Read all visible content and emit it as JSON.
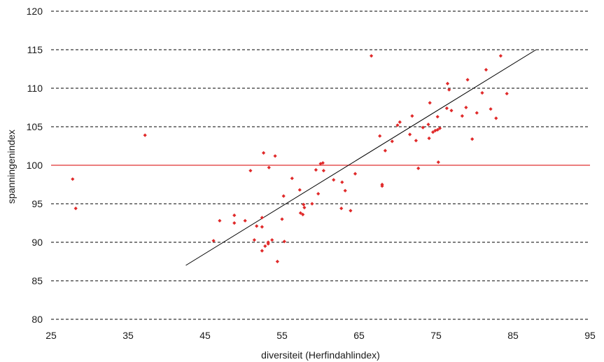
{
  "chart_data": {
    "type": "scatter",
    "title": "",
    "xlabel": "diversiteit (Herfindahlindex)",
    "ylabel": "spanningenindex",
    "xlim": [
      25,
      95
    ],
    "ylim": [
      80,
      120
    ],
    "x_ticks": [
      25,
      35,
      45,
      55,
      65,
      75,
      85,
      95
    ],
    "y_ticks": [
      80,
      85,
      90,
      95,
      100,
      105,
      110,
      115,
      120
    ],
    "grid": "horizontal-dashed",
    "legend": "none",
    "reference_line": {
      "y": 100,
      "color": "#e03030"
    },
    "trend_line": {
      "x": [
        42.5,
        88
      ],
      "y": [
        87,
        115
      ],
      "color": "#000000"
    },
    "marker_color": "#e02a2a",
    "points": [
      [
        27.8,
        98.2
      ],
      [
        28.2,
        94.4
      ],
      [
        37.2,
        103.9
      ],
      [
        46.1,
        90.2
      ],
      [
        46.9,
        92.8
      ],
      [
        48.8,
        93.5
      ],
      [
        48.8,
        92.5
      ],
      [
        50.2,
        92.8
      ],
      [
        50.9,
        99.3
      ],
      [
        51.4,
        90.3
      ],
      [
        51.7,
        92.1
      ],
      [
        52.4,
        93.2
      ],
      [
        52.6,
        101.6
      ],
      [
        52.4,
        92.0
      ],
      [
        52.4,
        88.9
      ],
      [
        52.8,
        89.5
      ],
      [
        53.2,
        90.0
      ],
      [
        53.2,
        89.8
      ],
      [
        53.3,
        99.7
      ],
      [
        53.7,
        90.3
      ],
      [
        54.1,
        101.2
      ],
      [
        54.4,
        87.5
      ],
      [
        55.0,
        93.0
      ],
      [
        55.2,
        96.0
      ],
      [
        55.3,
        90.1
      ],
      [
        56.3,
        98.3
      ],
      [
        57.3,
        96.8
      ],
      [
        57.4,
        93.8
      ],
      [
        57.7,
        93.6
      ],
      [
        57.8,
        94.9
      ],
      [
        57.9,
        94.5
      ],
      [
        58.9,
        95.0
      ],
      [
        59.4,
        99.4
      ],
      [
        59.7,
        96.3
      ],
      [
        60.0,
        100.2
      ],
      [
        60.3,
        100.3
      ],
      [
        60.4,
        99.3
      ],
      [
        61.7,
        98.1
      ],
      [
        62.7,
        94.4
      ],
      [
        62.8,
        97.8
      ],
      [
        63.2,
        96.7
      ],
      [
        63.9,
        94.1
      ],
      [
        64.5,
        98.9
      ],
      [
        66.6,
        114.2
      ],
      [
        67.7,
        103.8
      ],
      [
        68.0,
        97.5
      ],
      [
        68.0,
        97.3
      ],
      [
        68.4,
        101.9
      ],
      [
        69.3,
        103.1
      ],
      [
        70.0,
        105.2
      ],
      [
        70.3,
        105.6
      ],
      [
        71.6,
        104.0
      ],
      [
        71.9,
        106.4
      ],
      [
        72.4,
        103.2
      ],
      [
        72.7,
        99.6
      ],
      [
        73.3,
        104.9
      ],
      [
        74.0,
        105.3
      ],
      [
        74.1,
        103.5
      ],
      [
        74.2,
        108.1
      ],
      [
        74.6,
        104.3
      ],
      [
        74.9,
        104.5
      ],
      [
        75.2,
        104.6
      ],
      [
        75.2,
        106.3
      ],
      [
        75.5,
        104.8
      ],
      [
        75.3,
        100.4
      ],
      [
        76.4,
        107.4
      ],
      [
        76.5,
        110.6
      ],
      [
        76.7,
        109.8
      ],
      [
        77.0,
        107.1
      ],
      [
        78.4,
        106.4
      ],
      [
        78.9,
        107.5
      ],
      [
        79.1,
        111.1
      ],
      [
        79.7,
        103.4
      ],
      [
        80.3,
        106.8
      ],
      [
        81.0,
        109.4
      ],
      [
        81.5,
        112.4
      ],
      [
        82.1,
        107.3
      ],
      [
        82.8,
        106.1
      ],
      [
        83.4,
        114.2
      ],
      [
        84.2,
        109.3
      ]
    ]
  }
}
